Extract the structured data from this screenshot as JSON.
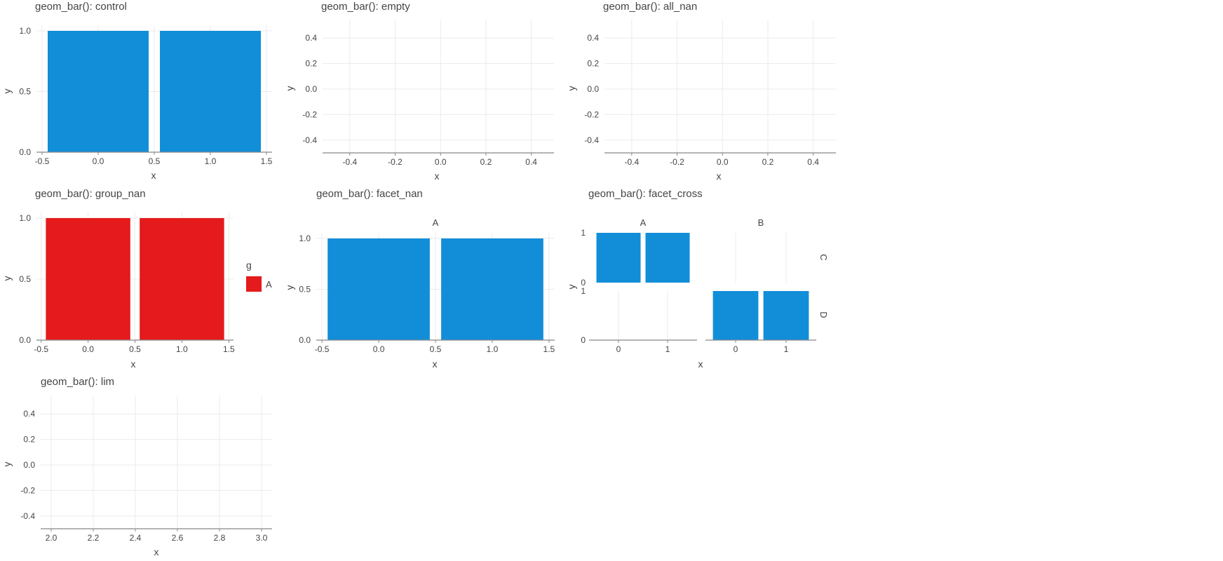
{
  "colors": {
    "bar_blue": "#128ed8",
    "bar_red": "#e41a1c",
    "grid": "#ebebeb",
    "axis": "#888888"
  },
  "panels": {
    "control": {
      "title": "geom_bar(): control"
    },
    "empty": {
      "title": "geom_bar(): empty"
    },
    "all_nan": {
      "title": "geom_bar(): all_nan"
    },
    "group_nan": {
      "title": "geom_bar(): group_nan"
    },
    "facet_nan": {
      "title": "geom_bar(): facet_nan"
    },
    "facet_cross": {
      "title": "geom_bar(): facet_cross"
    },
    "lim": {
      "title": "geom_bar(): lim"
    }
  },
  "chart_data": [
    {
      "id": "control",
      "type": "bar",
      "title": "geom_bar(): control",
      "xlabel": "x",
      "ylabel": "y",
      "x": [
        0,
        1
      ],
      "values": [
        1,
        1
      ],
      "bar_width": 0.9,
      "xlim": [
        -0.5,
        1.5
      ],
      "ylim": [
        0,
        1
      ],
      "xticks": [
        -0.5,
        0.0,
        0.5,
        1.0,
        1.5
      ],
      "xtick_labels": [
        "-0.5",
        "0.0",
        "0.5",
        "1.0",
        "1.5"
      ],
      "yticks": [
        0,
        0.5,
        1
      ],
      "ytick_labels": [
        "0.0",
        "0.5",
        "1.0"
      ],
      "color": "#128ed8",
      "grid": true
    },
    {
      "id": "empty",
      "type": "bar",
      "title": "geom_bar(): empty",
      "xlabel": "x",
      "ylabel": "y",
      "x": [],
      "values": [],
      "xlim": [
        -0.5,
        0.5
      ],
      "ylim": [
        -0.5,
        0.5
      ],
      "xticks": [
        -0.4,
        -0.2,
        0,
        0.2,
        0.4
      ],
      "xtick_labels": [
        "-0.4",
        "-0.2",
        "0.0",
        "0.2",
        "0.4"
      ],
      "yticks": [
        -0.4,
        -0.2,
        0,
        0.2,
        0.4
      ],
      "ytick_labels": [
        "-0.4",
        "-0.2",
        "0.0",
        "0.2",
        "0.4"
      ],
      "grid": true
    },
    {
      "id": "all_nan",
      "type": "bar",
      "title": "geom_bar(): all_nan",
      "xlabel": "x",
      "ylabel": "y",
      "x": [],
      "values": [],
      "xlim": [
        -0.5,
        0.5
      ],
      "ylim": [
        -0.5,
        0.5
      ],
      "xticks": [
        -0.4,
        -0.2,
        0,
        0.2,
        0.4
      ],
      "xtick_labels": [
        "-0.4",
        "-0.2",
        "0.0",
        "0.2",
        "0.4"
      ],
      "yticks": [
        -0.4,
        -0.2,
        0,
        0.2,
        0.4
      ],
      "ytick_labels": [
        "-0.4",
        "-0.2",
        "0.0",
        "0.2",
        "0.4"
      ],
      "grid": true
    },
    {
      "id": "group_nan",
      "type": "bar",
      "title": "geom_bar(): group_nan",
      "xlabel": "x",
      "ylabel": "y",
      "x": [
        0,
        1
      ],
      "values": [
        1,
        1
      ],
      "bar_width": 0.9,
      "xlim": [
        -0.5,
        1.5
      ],
      "ylim": [
        0,
        1
      ],
      "xticks": [
        -0.5,
        0.0,
        0.5,
        1.0,
        1.5
      ],
      "xtick_labels": [
        "-0.5",
        "0.0",
        "0.5",
        "1.0",
        "1.5"
      ],
      "yticks": [
        0,
        0.5,
        1
      ],
      "ytick_labels": [
        "0.0",
        "0.5",
        "1.0"
      ],
      "color": "#e41a1c",
      "grid": true,
      "legend": {
        "title": "g",
        "entries": [
          {
            "label": "A",
            "color": "#e41a1c"
          }
        ],
        "position": "right"
      }
    },
    {
      "id": "facet_nan",
      "type": "bar",
      "title": "geom_bar(): facet_nan",
      "xlabel": "x",
      "ylabel": "y",
      "strip": "A",
      "x": [
        0,
        1
      ],
      "values": [
        1,
        1
      ],
      "bar_width": 0.9,
      "xlim": [
        -0.5,
        1.5
      ],
      "ylim": [
        0,
        1
      ],
      "xticks": [
        -0.5,
        0.0,
        0.5,
        1.0,
        1.5
      ],
      "xtick_labels": [
        "-0.5",
        "0.0",
        "0.5",
        "1.0",
        "1.5"
      ],
      "yticks": [
        0,
        0.5,
        1
      ],
      "ytick_labels": [
        "0.0",
        "0.5",
        "1.0"
      ],
      "color": "#128ed8",
      "grid": true
    },
    {
      "id": "facet_cross",
      "type": "bar",
      "title": "geom_bar(): facet_cross",
      "xlabel": "x",
      "ylabel": "y",
      "col_strips": [
        "A",
        "B"
      ],
      "row_strips": [
        "C",
        "D"
      ],
      "xlim": [
        -0.5,
        1.5
      ],
      "ylim": [
        0,
        1
      ],
      "xticks": [
        0,
        1
      ],
      "xtick_labels": [
        "0",
        "1"
      ],
      "yticks": [
        0,
        1
      ],
      "ytick_labels": [
        "0",
        "1"
      ],
      "color": "#128ed8",
      "grid": true,
      "bar_width": 0.9,
      "facets": [
        {
          "col": "A",
          "row": "C",
          "x": [
            0,
            1
          ],
          "values": [
            1,
            1
          ]
        },
        {
          "col": "B",
          "row": "C",
          "x": [],
          "values": []
        },
        {
          "col": "A",
          "row": "D",
          "x": [],
          "values": []
        },
        {
          "col": "B",
          "row": "D",
          "x": [
            0,
            1
          ],
          "values": [
            1,
            1
          ]
        }
      ]
    },
    {
      "id": "lim",
      "type": "bar",
      "title": "geom_bar(): lim",
      "xlabel": "x",
      "ylabel": "y",
      "x": [],
      "values": [],
      "xlim": [
        1.95,
        3.05
      ],
      "ylim": [
        -0.5,
        0.5
      ],
      "xticks": [
        2.0,
        2.2,
        2.4,
        2.6,
        2.8,
        3.0
      ],
      "xtick_labels": [
        "2.0",
        "2.2",
        "2.4",
        "2.6",
        "2.8",
        "3.0"
      ],
      "yticks": [
        -0.4,
        -0.2,
        0,
        0.2,
        0.4
      ],
      "ytick_labels": [
        "-0.4",
        "-0.2",
        "0.0",
        "0.2",
        "0.4"
      ],
      "grid": true
    }
  ]
}
